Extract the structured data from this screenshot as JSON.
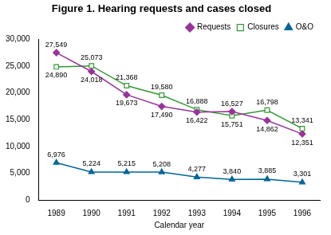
{
  "chart_data": {
    "type": "line",
    "title": "Figure 1. Hearing requests and cases closed",
    "x_label": "Calendar year",
    "categories": [
      "1989",
      "1990",
      "1991",
      "1992",
      "1993",
      "1994",
      "1995",
      "1996"
    ],
    "series": [
      {
        "name": "Requests",
        "color": "#993399",
        "marker": "diamond",
        "values": [
          27549,
          24018,
          19673,
          17490,
          16422,
          16527,
          14862,
          12351
        ],
        "value_labels": [
          "27,549",
          "24,018",
          "19,673",
          "17,490",
          "16,422",
          "16,527",
          "14,862",
          "12,351"
        ]
      },
      {
        "name": "Closures",
        "color": "#339933",
        "marker": "open square",
        "values": [
          24890,
          25073,
          21368,
          19580,
          16888,
          15751,
          16798,
          13341
        ],
        "value_labels": [
          "24,890",
          "25,073",
          "21,368",
          "19,580",
          "16,888",
          "15,751",
          "16,798",
          "13,341"
        ]
      },
      {
        "name": "O&O",
        "color": "#006699",
        "marker": "triangle",
        "values": [
          6976,
          5224,
          5215,
          5208,
          4277,
          3840,
          3885,
          3301
        ],
        "value_labels": [
          "6,976",
          "5,224",
          "5,215",
          "5,208",
          "4,277",
          "3,840",
          "3,885",
          "3,301"
        ]
      }
    ],
    "ylim": [
      0,
      30000
    ],
    "yticks": [
      0,
      {
        "value": 5000,
        "label": "5,000"
      },
      {
        "value": 10000,
        "label": "10,000"
      },
      {
        "value": 15000,
        "label": "15,000"
      },
      {
        "value": 20000,
        "label": "20,000"
      },
      {
        "value": 25000,
        "label": "25,000"
      },
      {
        "value": 30000,
        "label": "30,000"
      }
    ],
    "grid": false,
    "legend": "top right",
    "data_labels": true
  }
}
